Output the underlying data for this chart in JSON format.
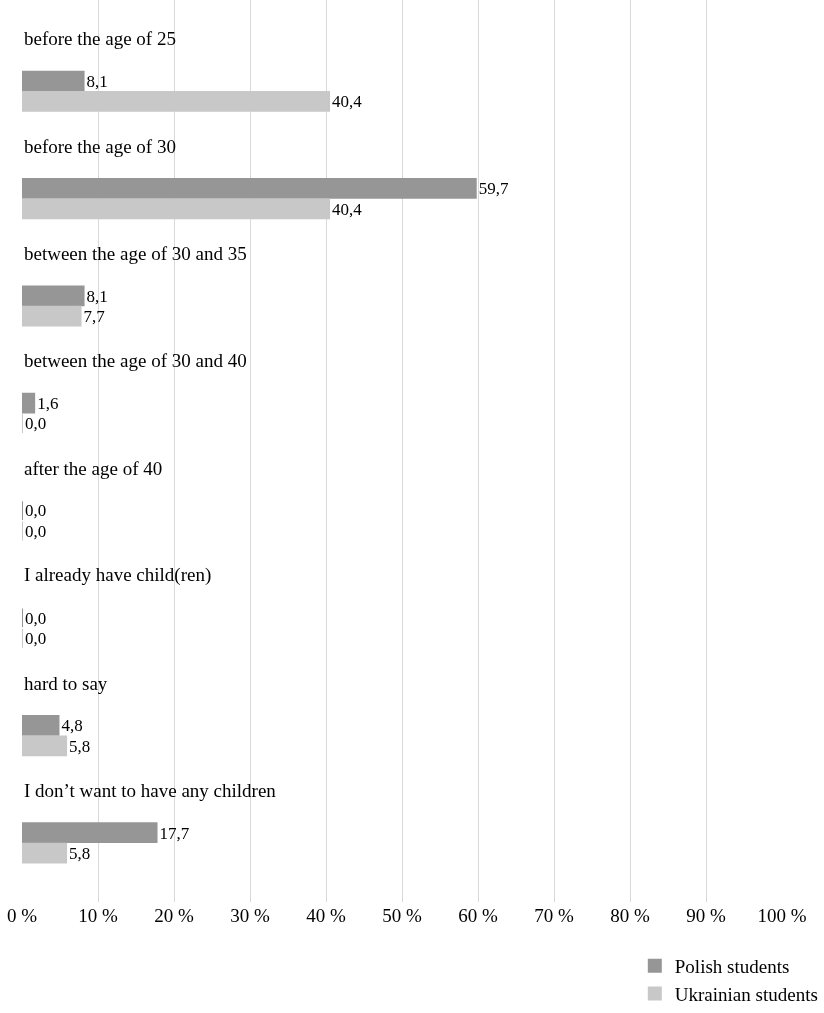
{
  "chart_data": {
    "type": "bar",
    "orientation": "horizontal",
    "categories": [
      "before the age of 25",
      "before the age of 30",
      "between the age of 30 and 35",
      "between the age of 30 and 40",
      "after the age of 40",
      "I already have child(ren)",
      "hard to say",
      "I don’t want to have any children"
    ],
    "series": [
      {
        "name": "Polish students",
        "color": "#969696",
        "values": [
          8.1,
          59.7,
          8.1,
          1.6,
          0.0,
          0.0,
          4.8,
          17.7
        ],
        "value_labels": [
          "8,1",
          "59,7",
          "8,1",
          "1,6",
          "0,0",
          "0,0",
          "4,8",
          "17,7"
        ]
      },
      {
        "name": "Ukrainian students",
        "color": "#c8c8c8",
        "values": [
          40.4,
          40.4,
          7.7,
          0.0,
          0.0,
          0.0,
          5.8,
          5.8
        ],
        "value_labels": [
          "40,4",
          "40,4",
          "7,7",
          "0,0",
          "0,0",
          "0,0",
          "5,8",
          "5,8"
        ]
      }
    ],
    "xlim": [
      0,
      100
    ],
    "xticks": [
      {
        "value": 0,
        "label": "0 %"
      },
      {
        "value": 10,
        "label": "10 %"
      },
      {
        "value": 20,
        "label": "20 %"
      },
      {
        "value": 30,
        "label": "30 %"
      },
      {
        "value": 40,
        "label": "40 %"
      },
      {
        "value": 50,
        "label": "50 %"
      },
      {
        "value": 60,
        "label": "60 %"
      },
      {
        "value": 70,
        "label": "70 %"
      },
      {
        "value": 80,
        "label": "80 %"
      },
      {
        "value": 90,
        "label": "90 %"
      },
      {
        "value": 100,
        "label": "100 %"
      }
    ],
    "grid": "x",
    "legend": "bottom right"
  }
}
